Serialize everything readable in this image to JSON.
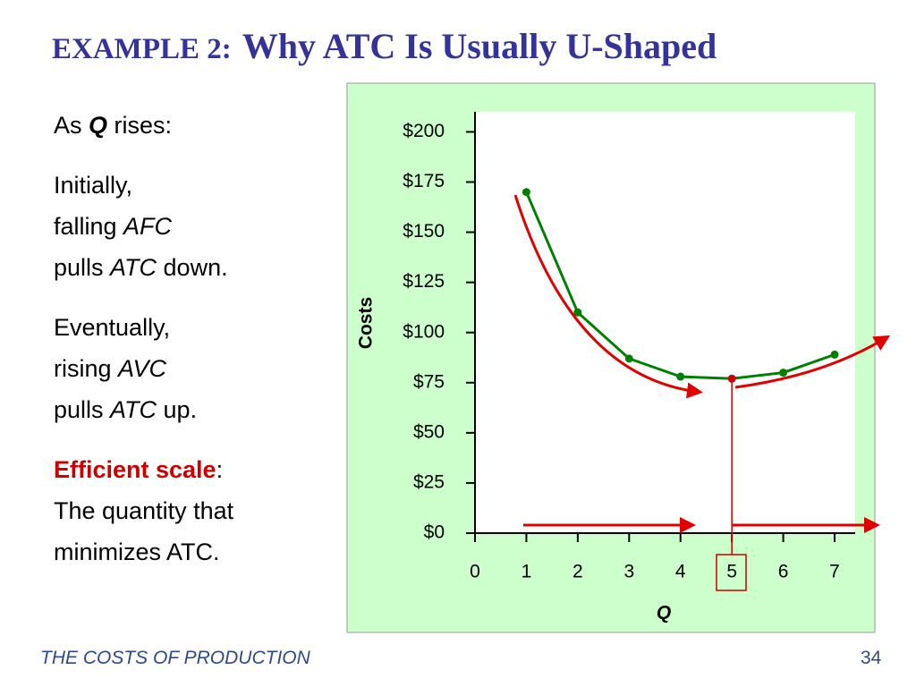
{
  "header": {
    "label": "EXAMPLE 2:",
    "title": "Why ATC Is Usually U-Shaped"
  },
  "body": [
    [
      [
        {
          "text": "As "
        },
        {
          "text": "Q",
          "style": "bold-italic"
        },
        {
          "text": " rises:"
        }
      ]
    ],
    [
      [
        {
          "text": "Initially,"
        }
      ],
      [
        {
          "text": "falling "
        },
        {
          "text": "AFC",
          "style": "italic"
        }
      ],
      [
        {
          "text": "pulls "
        },
        {
          "text": "ATC",
          "style": "italic"
        },
        {
          "text": " down."
        }
      ]
    ],
    [
      [
        {
          "text": "Eventually,"
        }
      ],
      [
        {
          "text": "rising "
        },
        {
          "text": "AVC",
          "style": "italic"
        }
      ],
      [
        {
          "text": "pulls "
        },
        {
          "text": "ATC",
          "style": "italic"
        },
        {
          "text": " up."
        }
      ]
    ],
    [
      [
        {
          "text": "Efficient scale",
          "style": "red-bold"
        },
        {
          "text": ":"
        }
      ],
      [
        {
          "text": "The quantity that"
        }
      ],
      [
        {
          "text": "minimizes ATC."
        }
      ]
    ]
  ],
  "footer": {
    "text": "THE COSTS OF PRODUCTION",
    "page": "34"
  },
  "chart_data": {
    "type": "line",
    "xlabel": "Q",
    "ylabel": "Costs",
    "x": [
      1,
      2,
      3,
      4,
      5,
      6,
      7
    ],
    "series": [
      {
        "color": "#008000",
        "values": [
          170,
          110,
          87,
          78,
          77,
          80,
          89
        ],
        "marker_colors": [
          "#008000",
          "#008000",
          "#008000",
          "#008000",
          "#cc0000",
          "#008000",
          "#008000"
        ]
      }
    ],
    "xlim": [
      0,
      7.4
    ],
    "ylim": [
      0,
      210
    ],
    "xticks": [
      0,
      1,
      2,
      3,
      4,
      5,
      6,
      7
    ],
    "yticks": [
      {
        "value": 0,
        "label": "$0"
      },
      {
        "value": 25,
        "label": "$25"
      },
      {
        "value": 50,
        "label": "$50"
      },
      {
        "value": 75,
        "label": "$75"
      },
      {
        "value": 100,
        "label": "$100"
      },
      {
        "value": 125,
        "label": "$125"
      },
      {
        "value": 150,
        "label": "$150"
      },
      {
        "value": 175,
        "label": "$175"
      },
      {
        "value": 200,
        "label": "$200"
      }
    ]
  }
}
